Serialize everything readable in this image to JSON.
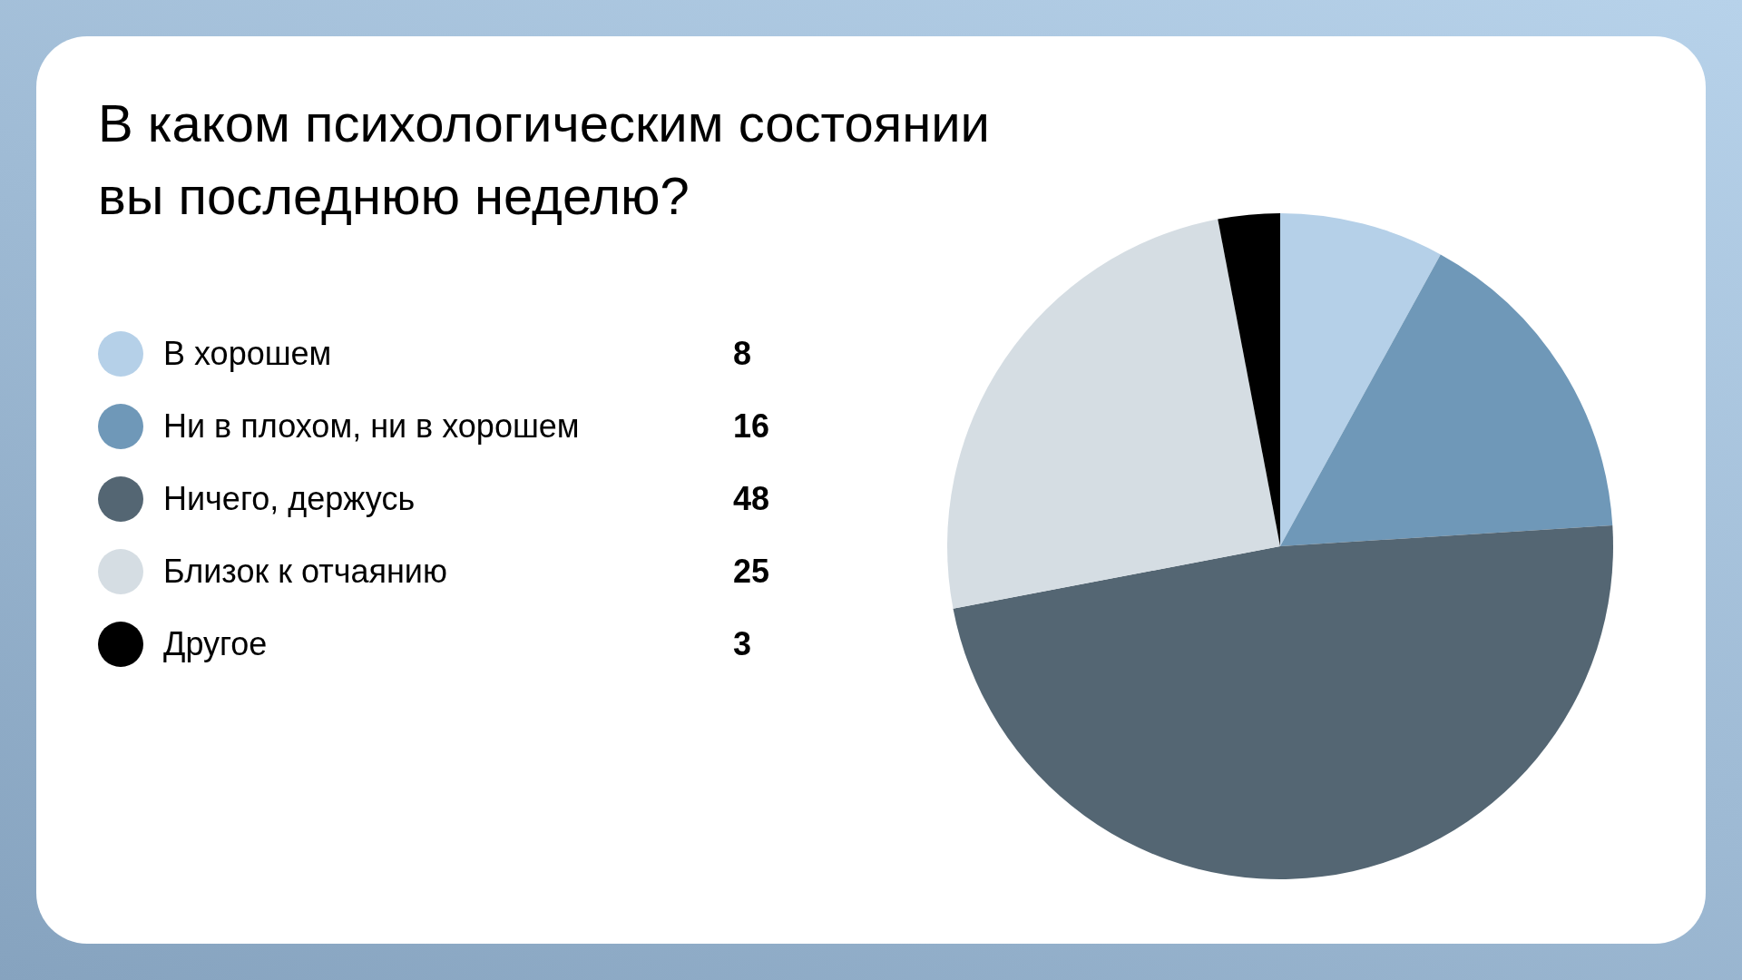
{
  "chart_data": {
    "type": "pie",
    "title": "В каком психологическим состоянии\nвы последнюю неделю?",
    "categories": [
      "В хорошем",
      "Ни в плохом, ни в хорошем",
      "Ничего, держусь",
      "Близок к отчаянию",
      "Другое"
    ],
    "values": [
      8,
      16,
      48,
      25,
      3
    ],
    "colors": [
      "#b5d0e8",
      "#6f98b8",
      "#546673",
      "#d5dde3",
      "#000000"
    ],
    "legend": "left",
    "data_labels": true
  }
}
